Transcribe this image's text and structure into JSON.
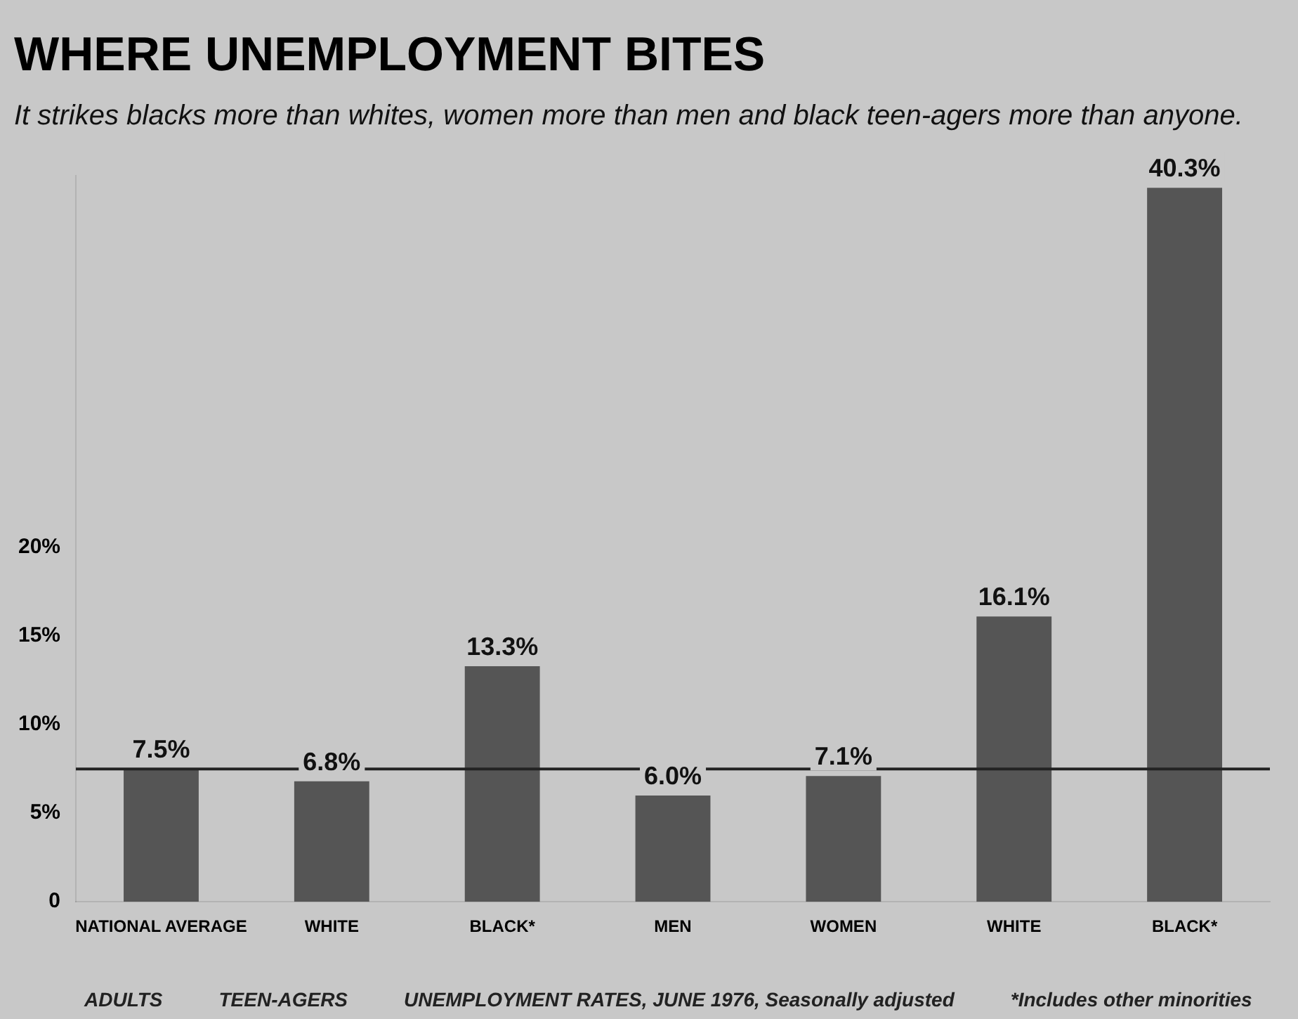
{
  "chart_data": {
    "type": "bar",
    "title": "WHERE UNEMPLOYMENT BITES",
    "subtitle": "It strikes blacks more than whites, women more than men and black teen-agers more than anyone.",
    "categories": [
      "NATIONAL AVERAGE",
      "WHITE",
      "BLACK*",
      "MEN",
      "WOMEN",
      "WHITE",
      "BLACK*"
    ],
    "values": [
      7.5,
      6.8,
      13.3,
      6.0,
      7.1,
      16.1,
      40.3
    ],
    "value_labels": [
      "7.5%",
      "6.8%",
      "13.3%",
      "6.0%",
      "7.1%",
      "16.1%",
      "40.3%"
    ],
    "color": "#555555",
    "ylim": [
      0,
      41
    ],
    "yticks": [
      0,
      {
        "value": 5,
        "label": "5%"
      },
      {
        "value": 10,
        "label": "10%"
      },
      {
        "value": 15,
        "label": "15%"
      },
      {
        "value": 20,
        "label": "20%"
      }
    ],
    "grid": false,
    "legend": false,
    "ref_lines": [
      {
        "axis": "y",
        "value": 7.5,
        "color": "#222222"
      }
    ],
    "annotations": [
      "ADULTS",
      "TEEN-AGERS",
      "UNEMPLOYMENT RATES, JUNE 1976, Seasonally adjusted",
      "*Includes other minorities"
    ]
  }
}
